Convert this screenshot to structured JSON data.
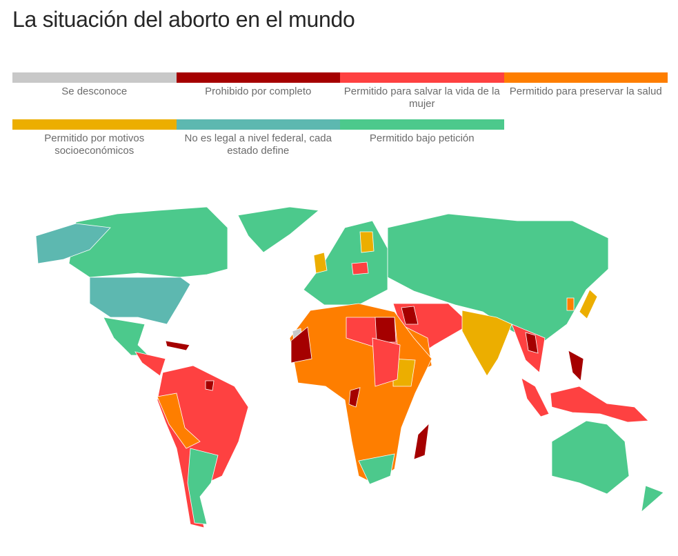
{
  "header": {
    "title": "La situación del aborto en el mundo"
  },
  "legend": {
    "items": [
      {
        "label": "Se desconoce",
        "color": "#c8c8c8"
      },
      {
        "label": "Prohibido por completo",
        "color": "#a50000"
      },
      {
        "label": "Permitido para salvar la vida de la mujer",
        "color": "#fe4141"
      },
      {
        "label": "Permitido para preservar la salud",
        "color": "#fe7e00"
      },
      {
        "label": "Permitido por motivos socioeconómicos",
        "color": "#ecae00"
      },
      {
        "label": "No es legal a nivel federal, cada estado define",
        "color": "#5db8b0"
      },
      {
        "label": "Permitido bajo petición",
        "color": "#4cc98c"
      }
    ]
  }
}
